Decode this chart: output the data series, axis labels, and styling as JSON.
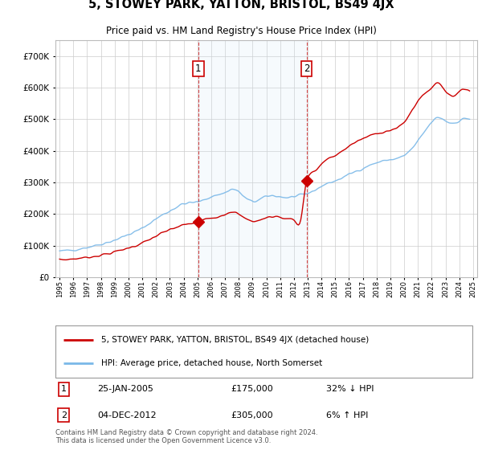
{
  "title": "5, STOWEY PARK, YATTON, BRISTOL, BS49 4JX",
  "subtitle": "Price paid vs. HM Land Registry's House Price Index (HPI)",
  "footer": "Contains HM Land Registry data © Crown copyright and database right 2024.\nThis data is licensed under the Open Government Licence v3.0.",
  "legend_entry1": "5, STOWEY PARK, YATTON, BRISTOL, BS49 4JX (detached house)",
  "legend_entry2": "HPI: Average price, detached house, North Somerset",
  "transaction1": {
    "label": "1",
    "date": "25-JAN-2005",
    "price": "£175,000",
    "hpi": "32% ↓ HPI"
  },
  "transaction2": {
    "label": "2",
    "date": "04-DEC-2012",
    "price": "£305,000",
    "hpi": "6% ↑ HPI"
  },
  "vline1_x": 2005.07,
  "vline2_x": 2012.92,
  "marker1_x": 2005.07,
  "marker1_y": 175000,
  "marker2_x": 2012.92,
  "marker2_y": 305000,
  "hpi_color": "#7ab8e8",
  "price_color": "#cc0000",
  "vline_color": "#cc0000",
  "shade_color": "#d0e8f8",
  "background_color": "#ffffff",
  "grid_color": "#cccccc",
  "ylim": [
    0,
    750000
  ],
  "yticks": [
    0,
    100000,
    200000,
    300000,
    400000,
    500000,
    600000,
    700000
  ],
  "xlim_min": 1994.7,
  "xlim_max": 2025.3
}
